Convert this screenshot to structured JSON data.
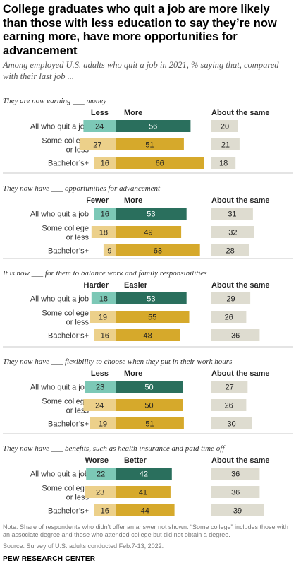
{
  "title": "College graduates who quit a job are more likely than those with less education to say they’re now earning more, have more opportunities for advancement",
  "subtitle": "Among employed U.S. adults who quit a job in 2021, % saying that, compared with their last job ...",
  "chart_data": {
    "type": "bar",
    "stacked": true,
    "groups": [
      "All who quit a job",
      "Some college or less",
      "Bachelor’s+"
    ],
    "same_label": "About the same",
    "colors": {
      "all_negative": "#7cc8b6",
      "all_positive": "#2a6f5d",
      "edu_negative": "#ecd08a",
      "edu_positive": "#d6a92b",
      "same": "#dedcd0"
    },
    "panels": [
      {
        "title": "They are now earning ___ money",
        "negative_label": "Less",
        "positive_label": "More",
        "negative": [
          24,
          27,
          16
        ],
        "positive": [
          56,
          51,
          66
        ],
        "same": [
          20,
          21,
          18
        ]
      },
      {
        "title": "They now have ___ opportunities for advancement",
        "negative_label": "Fewer",
        "positive_label": "More",
        "negative": [
          16,
          18,
          9
        ],
        "positive": [
          53,
          49,
          63
        ],
        "same": [
          31,
          32,
          28
        ]
      },
      {
        "title": "It is now ___ for them to balance work and family responsibilities",
        "negative_label": "Harder",
        "positive_label": "Easier",
        "negative": [
          18,
          19,
          16
        ],
        "positive": [
          53,
          55,
          48
        ],
        "same": [
          29,
          26,
          36
        ]
      },
      {
        "title": "They now have ___ flexibility to choose when they put in their work hours",
        "negative_label": "Less",
        "positive_label": "More",
        "negative": [
          23,
          24,
          19
        ],
        "positive": [
          50,
          50,
          51
        ],
        "same": [
          27,
          26,
          30
        ]
      },
      {
        "title": "They now have ___ benefits, such as health insurance and paid time off",
        "negative_label": "Worse",
        "positive_label": "Better",
        "negative": [
          22,
          23,
          16
        ],
        "positive": [
          42,
          41,
          44
        ],
        "same": [
          36,
          36,
          39
        ]
      }
    ]
  },
  "notes": "Note: Share of respondents who didn’t offer an answer not shown. “Some college” includes those with an associate degree and those who attended college but did not obtain a degree.",
  "source": "Source: Survey of U.S. adults conducted Feb.7-13, 2022.",
  "brand": "PEW RESEARCH CENTER"
}
